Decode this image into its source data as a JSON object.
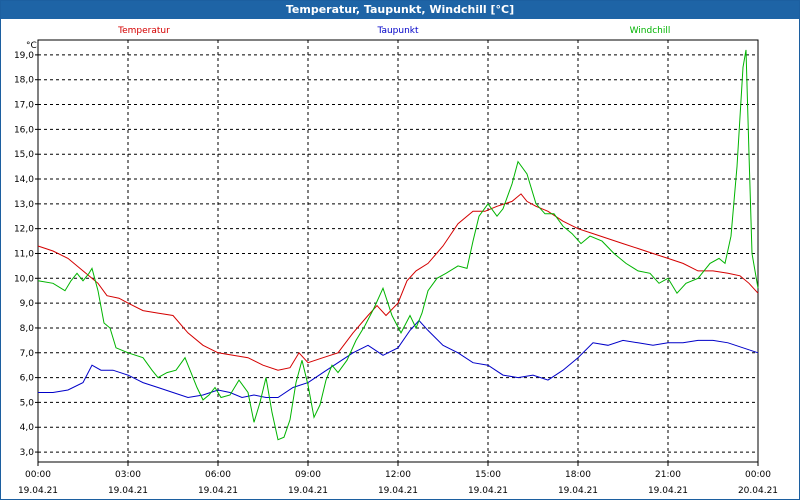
{
  "window": {
    "title": "Temperatur, Taupunkt, Windchill [°C]"
  },
  "chart_data": {
    "type": "line",
    "title": "Temperatur, Taupunkt, Windchill [°C]",
    "ylabel": "°C",
    "xlabel": "",
    "grid": true,
    "ylim": [
      2.6,
      19.6
    ],
    "xlim": [
      0,
      24
    ],
    "yticks": [
      3,
      4,
      5,
      6,
      7,
      8,
      9,
      10,
      11,
      12,
      13,
      14,
      15,
      16,
      17,
      18,
      19
    ],
    "ytick_labels": [
      "3,0",
      "4,0",
      "5,0",
      "6,0",
      "7,0",
      "8,0",
      "9,0",
      "10,0",
      "11,0",
      "12,0",
      "13,0",
      "14,0",
      "15,0",
      "16,0",
      "17,0",
      "18,0",
      "19,0"
    ],
    "xticks": [
      0,
      3,
      6,
      9,
      12,
      15,
      18,
      21,
      24
    ],
    "xtick_times": [
      "00:00",
      "03:00",
      "06:00",
      "09:00",
      "12:00",
      "15:00",
      "18:00",
      "21:00",
      "00:00"
    ],
    "xtick_dates": [
      "19.04.21",
      "19.04.21",
      "19.04.21",
      "19.04.21",
      "19.04.21",
      "19.04.21",
      "19.04.21",
      "19.04.21",
      "20.04.21"
    ],
    "series": [
      {
        "name": "Temperatur",
        "color": "#d40000",
        "points": [
          [
            0,
            11.3
          ],
          [
            0.5,
            11.1
          ],
          [
            1.0,
            10.8
          ],
          [
            1.5,
            10.3
          ],
          [
            2.0,
            9.8
          ],
          [
            2.3,
            9.3
          ],
          [
            2.7,
            9.2
          ],
          [
            3.0,
            9.0
          ],
          [
            3.5,
            8.7
          ],
          [
            4.0,
            8.6
          ],
          [
            4.5,
            8.5
          ],
          [
            5.0,
            7.8
          ],
          [
            5.5,
            7.3
          ],
          [
            6.0,
            7.0
          ],
          [
            6.5,
            6.9
          ],
          [
            7.0,
            6.8
          ],
          [
            7.5,
            6.5
          ],
          [
            8.0,
            6.3
          ],
          [
            8.4,
            6.4
          ],
          [
            8.7,
            7.0
          ],
          [
            9.0,
            6.6
          ],
          [
            9.5,
            6.8
          ],
          [
            10.0,
            7.0
          ],
          [
            10.5,
            7.8
          ],
          [
            11.0,
            8.5
          ],
          [
            11.3,
            8.9
          ],
          [
            11.6,
            8.5
          ],
          [
            12.0,
            9.0
          ],
          [
            12.3,
            9.9
          ],
          [
            12.6,
            10.3
          ],
          [
            13.0,
            10.6
          ],
          [
            13.5,
            11.3
          ],
          [
            14.0,
            12.2
          ],
          [
            14.5,
            12.7
          ],
          [
            14.9,
            12.7
          ],
          [
            15.3,
            12.9
          ],
          [
            15.8,
            13.1
          ],
          [
            16.1,
            13.4
          ],
          [
            16.3,
            13.1
          ],
          [
            16.6,
            12.9
          ],
          [
            17.0,
            12.7
          ],
          [
            17.5,
            12.3
          ],
          [
            18.0,
            12.0
          ],
          [
            18.5,
            11.8
          ],
          [
            19.0,
            11.6
          ],
          [
            19.5,
            11.4
          ],
          [
            20.0,
            11.2
          ],
          [
            20.5,
            11.0
          ],
          [
            21.0,
            10.8
          ],
          [
            21.5,
            10.6
          ],
          [
            22.0,
            10.3
          ],
          [
            22.5,
            10.3
          ],
          [
            23.0,
            10.2
          ],
          [
            23.4,
            10.1
          ],
          [
            23.7,
            9.8
          ],
          [
            24.0,
            9.4
          ]
        ]
      },
      {
        "name": "Taupunkt",
        "color": "#0000c8",
        "points": [
          [
            0,
            5.4
          ],
          [
            0.5,
            5.4
          ],
          [
            1.0,
            5.5
          ],
          [
            1.5,
            5.8
          ],
          [
            1.8,
            6.5
          ],
          [
            2.1,
            6.3
          ],
          [
            2.5,
            6.3
          ],
          [
            3.0,
            6.1
          ],
          [
            3.5,
            5.8
          ],
          [
            4.0,
            5.6
          ],
          [
            4.5,
            5.4
          ],
          [
            5.0,
            5.2
          ],
          [
            5.5,
            5.3
          ],
          [
            6.0,
            5.5
          ],
          [
            6.4,
            5.4
          ],
          [
            6.8,
            5.2
          ],
          [
            7.2,
            5.3
          ],
          [
            7.6,
            5.2
          ],
          [
            8.0,
            5.2
          ],
          [
            8.5,
            5.6
          ],
          [
            9.0,
            5.8
          ],
          [
            9.5,
            6.2
          ],
          [
            10.0,
            6.6
          ],
          [
            10.5,
            7.0
          ],
          [
            11.0,
            7.3
          ],
          [
            11.5,
            6.9
          ],
          [
            12.0,
            7.2
          ],
          [
            12.4,
            7.9
          ],
          [
            12.7,
            8.3
          ],
          [
            13.0,
            7.9
          ],
          [
            13.5,
            7.3
          ],
          [
            14.0,
            7.0
          ],
          [
            14.5,
            6.6
          ],
          [
            15.0,
            6.5
          ],
          [
            15.5,
            6.1
          ],
          [
            16.0,
            6.0
          ],
          [
            16.5,
            6.1
          ],
          [
            17.0,
            5.9
          ],
          [
            17.5,
            6.3
          ],
          [
            18.0,
            6.8
          ],
          [
            18.5,
            7.4
          ],
          [
            19.0,
            7.3
          ],
          [
            19.5,
            7.5
          ],
          [
            20.0,
            7.4
          ],
          [
            20.5,
            7.3
          ],
          [
            21.0,
            7.4
          ],
          [
            21.5,
            7.4
          ],
          [
            22.0,
            7.5
          ],
          [
            22.5,
            7.5
          ],
          [
            23.0,
            7.4
          ],
          [
            23.5,
            7.2
          ],
          [
            24.0,
            7.0
          ]
        ]
      },
      {
        "name": "Windchill",
        "color": "#00b400",
        "points": [
          [
            0,
            9.9
          ],
          [
            0.5,
            9.8
          ],
          [
            0.9,
            9.5
          ],
          [
            1.1,
            9.9
          ],
          [
            1.3,
            10.2
          ],
          [
            1.5,
            9.9
          ],
          [
            1.7,
            10.2
          ],
          [
            1.8,
            10.4
          ],
          [
            2.0,
            9.5
          ],
          [
            2.2,
            8.2
          ],
          [
            2.4,
            8.0
          ],
          [
            2.6,
            7.2
          ],
          [
            3.0,
            7.0
          ],
          [
            3.5,
            6.8
          ],
          [
            3.8,
            6.3
          ],
          [
            4.0,
            6.0
          ],
          [
            4.3,
            6.2
          ],
          [
            4.6,
            6.3
          ],
          [
            4.9,
            6.8
          ],
          [
            5.1,
            6.2
          ],
          [
            5.3,
            5.6
          ],
          [
            5.5,
            5.1
          ],
          [
            5.7,
            5.3
          ],
          [
            5.9,
            5.6
          ],
          [
            6.1,
            5.2
          ],
          [
            6.4,
            5.3
          ],
          [
            6.7,
            5.9
          ],
          [
            7.0,
            5.4
          ],
          [
            7.2,
            4.2
          ],
          [
            7.4,
            5.0
          ],
          [
            7.6,
            6.0
          ],
          [
            7.8,
            4.6
          ],
          [
            8.0,
            3.5
          ],
          [
            8.2,
            3.6
          ],
          [
            8.4,
            4.3
          ],
          [
            8.6,
            5.8
          ],
          [
            8.8,
            6.7
          ],
          [
            9.0,
            5.7
          ],
          [
            9.2,
            4.4
          ],
          [
            9.4,
            4.9
          ],
          [
            9.6,
            5.9
          ],
          [
            9.8,
            6.5
          ],
          [
            10.0,
            6.2
          ],
          [
            10.3,
            6.7
          ],
          [
            10.6,
            7.5
          ],
          [
            10.9,
            8.1
          ],
          [
            11.2,
            8.8
          ],
          [
            11.5,
            9.6
          ],
          [
            11.8,
            8.5
          ],
          [
            12.1,
            7.8
          ],
          [
            12.4,
            8.5
          ],
          [
            12.6,
            8.0
          ],
          [
            12.8,
            8.6
          ],
          [
            13.0,
            9.5
          ],
          [
            13.3,
            10.0
          ],
          [
            13.6,
            10.2
          ],
          [
            14.0,
            10.5
          ],
          [
            14.3,
            10.4
          ],
          [
            14.5,
            11.5
          ],
          [
            14.7,
            12.5
          ],
          [
            15.0,
            13.0
          ],
          [
            15.3,
            12.5
          ],
          [
            15.5,
            12.8
          ],
          [
            15.8,
            13.8
          ],
          [
            16.0,
            14.7
          ],
          [
            16.3,
            14.2
          ],
          [
            16.6,
            13.0
          ],
          [
            16.9,
            12.6
          ],
          [
            17.2,
            12.6
          ],
          [
            17.5,
            12.1
          ],
          [
            17.8,
            11.8
          ],
          [
            18.1,
            11.4
          ],
          [
            18.4,
            11.7
          ],
          [
            18.8,
            11.5
          ],
          [
            19.2,
            11.0
          ],
          [
            19.6,
            10.6
          ],
          [
            20.0,
            10.3
          ],
          [
            20.4,
            10.2
          ],
          [
            20.7,
            9.8
          ],
          [
            21.0,
            10.0
          ],
          [
            21.3,
            9.4
          ],
          [
            21.6,
            9.8
          ],
          [
            22.0,
            10.0
          ],
          [
            22.4,
            10.6
          ],
          [
            22.7,
            10.8
          ],
          [
            22.9,
            10.6
          ],
          [
            23.1,
            11.7
          ],
          [
            23.3,
            14.5
          ],
          [
            23.5,
            18.5
          ],
          [
            23.6,
            19.2
          ],
          [
            23.7,
            15.0
          ],
          [
            23.8,
            11.0
          ],
          [
            24.0,
            9.6
          ]
        ]
      }
    ]
  }
}
